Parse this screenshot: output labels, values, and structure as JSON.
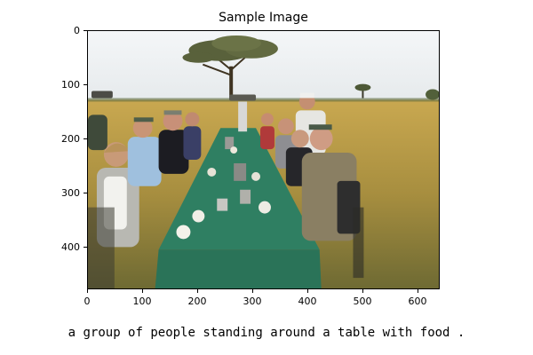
{
  "figure": {
    "title": "Sample Image",
    "image_description_icon": "safari-dinner-photo",
    "y_ticks": [
      "0",
      "100",
      "200",
      "300",
      "400"
    ],
    "x_ticks": [
      "0",
      "100",
      "200",
      "300",
      "400",
      "500",
      "600"
    ],
    "x_range": [
      0,
      640
    ],
    "y_range": [
      0,
      480
    ]
  },
  "caption": "a group of people standing around a table with food ."
}
